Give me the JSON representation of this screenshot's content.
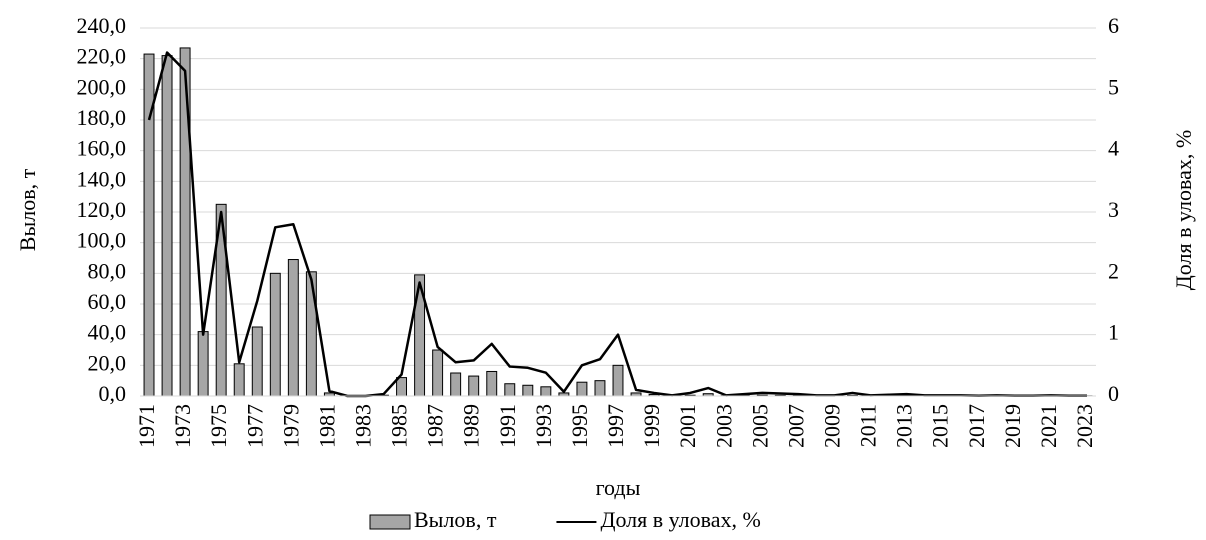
{
  "chart_data": {
    "type": "bar",
    "x_label": "годы",
    "y_label": "Вылов, т",
    "y2_label": "Доля в уловах, %",
    "categories": [
      "1971",
      null,
      "1973",
      null,
      "1975",
      null,
      "1977",
      null,
      "1979",
      null,
      "1981",
      null,
      "1983",
      null,
      "1985",
      null,
      "1987",
      null,
      "1989",
      null,
      "1991",
      null,
      "1993",
      null,
      "1995",
      null,
      "1997",
      null,
      "1999",
      null,
      "2001",
      null,
      "2003",
      null,
      "2005",
      null,
      "2007",
      null,
      "2009",
      null,
      "2011",
      null,
      "2013",
      null,
      "2015",
      null,
      "2017",
      null,
      "2019",
      null,
      "2021",
      null,
      "2023"
    ],
    "series": [
      {
        "name": "Вылов, т",
        "type": "bar",
        "color": "#a6a6a6",
        "values": [
          223,
          222,
          227,
          42,
          125,
          21,
          45,
          80,
          89,
          81,
          2,
          0,
          0,
          0.5,
          12,
          79,
          30,
          15,
          13,
          16,
          8,
          7,
          6,
          2,
          9,
          10,
          20,
          2,
          1,
          0.3,
          0.5,
          1.5,
          0.2,
          0.3,
          0.5,
          0.4,
          0.3,
          0.2,
          0.2,
          0.4,
          0.2,
          0.2,
          0.3,
          0.1,
          0.1,
          0.1,
          0.1,
          0.1,
          0.1,
          0.1,
          0.1,
          0.1,
          0.1
        ]
      },
      {
        "name": "Доля в уловах, %",
        "type": "line",
        "axis": "y2",
        "color": "#000000",
        "values": [
          4.5,
          5.6,
          5.3,
          1.0,
          3.0,
          0.55,
          1.55,
          2.75,
          2.8,
          1.9,
          0.08,
          0,
          0,
          0.03,
          0.35,
          1.85,
          0.8,
          0.55,
          0.58,
          0.85,
          0.48,
          0.46,
          0.38,
          0.07,
          0.5,
          0.6,
          1.0,
          0.1,
          0.05,
          0.01,
          0.05,
          0.13,
          0.01,
          0.03,
          0.05,
          0.04,
          0.03,
          0.01,
          0.01,
          0.05,
          0.01,
          0.02,
          0.03,
          0.01,
          0.01,
          0.01,
          0.005,
          0.01,
          0.005,
          0.005,
          0.01,
          0.005,
          0.005
        ]
      }
    ],
    "ylim": [
      0,
      240
    ],
    "yticks": [
      {
        "value": 0,
        "label": "0,0"
      },
      {
        "value": 20,
        "label": "20,0"
      },
      {
        "value": 40,
        "label": "40,0"
      },
      {
        "value": 60,
        "label": "60,0"
      },
      {
        "value": 80,
        "label": "80,0"
      },
      {
        "value": 100,
        "label": "100,0"
      },
      {
        "value": 120,
        "label": "120,0"
      },
      {
        "value": 140,
        "label": "140,0"
      },
      {
        "value": 160,
        "label": "160,0"
      },
      {
        "value": 180,
        "label": "180,0"
      },
      {
        "value": 200,
        "label": "200,0"
      },
      {
        "value": 220,
        "label": "220,0"
      },
      {
        "value": 240,
        "label": "240,0"
      }
    ],
    "y2lim": [
      0,
      6
    ],
    "y2ticks": [
      0,
      1,
      2,
      3,
      4,
      5,
      6
    ],
    "grid": true,
    "legend": "bottom"
  }
}
